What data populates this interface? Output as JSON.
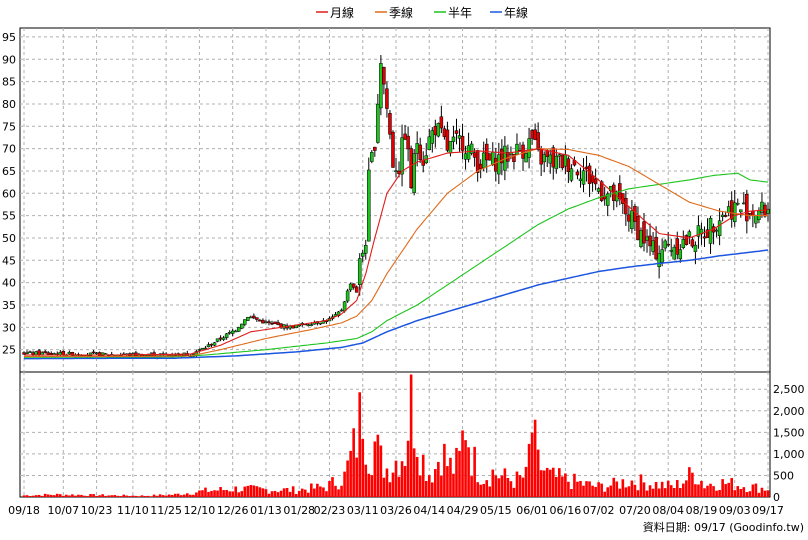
{
  "chart_data": {
    "type": "candlestick",
    "legend": [
      {
        "label": "月線",
        "color": "#e01b1b"
      },
      {
        "label": "季線",
        "color": "#e06a1b"
      },
      {
        "label": "半年",
        "color": "#1bc41b"
      },
      {
        "label": "年線",
        "color": "#1b55e0"
      }
    ],
    "legend_placement": "top-center",
    "grid": true,
    "price_axis": {
      "min": 20,
      "max": 97,
      "ticks": [
        25,
        30,
        35,
        40,
        45,
        50,
        55,
        60,
        65,
        70,
        75,
        80,
        85,
        90,
        95
      ]
    },
    "volume_axis": {
      "min": 0,
      "max": 2900,
      "ticks": [
        0,
        500,
        1000,
        1500,
        2000,
        2500
      ],
      "tick_labels": [
        "0",
        "500",
        "1,000",
        "1,500",
        "2,000",
        "2,500"
      ]
    },
    "x_axis": {
      "labels": [
        "09/18",
        "10/07",
        "10/23",
        "11/10",
        "11/25",
        "12/10",
        "12/26",
        "01/13",
        "01/28",
        "02/23",
        "03/11",
        "03/26",
        "04/14",
        "04/29",
        "05/15",
        "06/01",
        "06/16",
        "07/02",
        "07/20",
        "08/04",
        "08/19",
        "09/03",
        "09/17"
      ],
      "label_index": [
        0,
        13,
        24,
        36,
        47,
        58,
        69,
        80,
        91,
        101,
        112,
        123,
        134,
        145,
        156,
        168,
        179,
        190,
        202,
        213,
        224,
        235,
        246
      ]
    },
    "series_keypoints": {
      "close": [
        [
          0,
          24.2
        ],
        [
          20,
          24.0
        ],
        [
          40,
          23.8
        ],
        [
          55,
          24.0
        ],
        [
          60,
          25.5
        ],
        [
          65,
          27.5
        ],
        [
          70,
          29.5
        ],
        [
          74,
          32.5
        ],
        [
          80,
          31.0
        ],
        [
          88,
          30.0
        ],
        [
          95,
          31.0
        ],
        [
          100,
          31.5
        ],
        [
          103,
          32.5
        ],
        [
          105,
          34.0
        ],
        [
          108,
          40.0
        ],
        [
          110,
          38.0
        ],
        [
          111,
          44.0
        ],
        [
          113,
          50.0
        ],
        [
          114,
          63.0
        ],
        [
          116,
          72.0
        ],
        [
          118,
          90.0
        ],
        [
          120,
          79.0
        ],
        [
          122,
          67.0
        ],
        [
          124,
          66.0
        ],
        [
          126,
          74.0
        ],
        [
          128,
          62.0
        ],
        [
          130,
          72.0
        ],
        [
          132,
          68.0
        ],
        [
          134,
          72.0
        ],
        [
          136,
          75.0
        ],
        [
          140,
          70.0
        ],
        [
          145,
          72.0
        ],
        [
          150,
          67.0
        ],
        [
          155,
          67.0
        ],
        [
          158,
          68.0
        ],
        [
          165,
          70.0
        ],
        [
          168,
          72.0
        ],
        [
          170,
          68.0
        ],
        [
          175,
          67.0
        ],
        [
          180,
          67.0
        ],
        [
          185,
          65.0
        ],
        [
          190,
          61.0
        ],
        [
          195,
          59.0
        ],
        [
          200,
          55.0
        ],
        [
          205,
          50.0
        ],
        [
          208,
          47.0
        ],
        [
          212,
          48.0
        ],
        [
          218,
          49.0
        ],
        [
          222,
          50.0
        ],
        [
          226,
          52.0
        ],
        [
          230,
          55.0
        ],
        [
          235,
          57.0
        ],
        [
          240,
          56.0
        ],
        [
          244,
          56.0
        ],
        [
          246,
          56.5
        ]
      ],
      "volume": [
        [
          0,
          40
        ],
        [
          10,
          60
        ],
        [
          20,
          50
        ],
        [
          30,
          40
        ],
        [
          40,
          30
        ],
        [
          50,
          60
        ],
        [
          60,
          150
        ],
        [
          70,
          200
        ],
        [
          80,
          180
        ],
        [
          90,
          170
        ],
        [
          100,
          250
        ],
        [
          106,
          500
        ],
        [
          110,
          1400
        ],
        [
          112,
          2300
        ],
        [
          114,
          1100
        ],
        [
          116,
          1300
        ],
        [
          118,
          900
        ],
        [
          120,
          700
        ],
        [
          122,
          800
        ],
        [
          124,
          1000
        ],
        [
          126,
          1100
        ],
        [
          128,
          2500
        ],
        [
          130,
          1600
        ],
        [
          132,
          900
        ],
        [
          134,
          600
        ],
        [
          136,
          700
        ],
        [
          138,
          1200
        ],
        [
          140,
          800
        ],
        [
          142,
          700
        ],
        [
          144,
          900
        ],
        [
          146,
          1900
        ],
        [
          148,
          1000
        ],
        [
          150,
          700
        ],
        [
          152,
          500
        ],
        [
          155,
          600
        ],
        [
          158,
          500
        ],
        [
          162,
          400
        ],
        [
          166,
          500
        ],
        [
          168,
          1650
        ],
        [
          170,
          800
        ],
        [
          174,
          500
        ],
        [
          180,
          400
        ],
        [
          186,
          300
        ],
        [
          190,
          250
        ],
        [
          195,
          300
        ],
        [
          200,
          400
        ],
        [
          205,
          350
        ],
        [
          210,
          300
        ],
        [
          215,
          250
        ],
        [
          220,
          500
        ],
        [
          222,
          600
        ],
        [
          225,
          300
        ],
        [
          230,
          350
        ],
        [
          236,
          300
        ],
        [
          240,
          250
        ],
        [
          246,
          200
        ]
      ],
      "ma_month": [
        [
          0,
          23.8
        ],
        [
          30,
          23.8
        ],
        [
          55,
          24.0
        ],
        [
          65,
          26.0
        ],
        [
          75,
          29.0
        ],
        [
          90,
          30.5
        ],
        [
          100,
          31.5
        ],
        [
          105,
          33.0
        ],
        [
          110,
          36.0
        ],
        [
          113,
          42.0
        ],
        [
          116,
          50.0
        ],
        [
          120,
          60.0
        ],
        [
          125,
          65.0
        ],
        [
          130,
          67.0
        ],
        [
          140,
          69.0
        ],
        [
          150,
          69.5
        ],
        [
          160,
          69.0
        ],
        [
          170,
          70.0
        ],
        [
          180,
          68.5
        ],
        [
          190,
          63.0
        ],
        [
          200,
          57.0
        ],
        [
          210,
          51.0
        ],
        [
          220,
          50.0
        ],
        [
          228,
          52.0
        ],
        [
          235,
          55.0
        ],
        [
          240,
          56.0
        ],
        [
          246,
          56.3
        ]
      ],
      "ma_quarter": [
        [
          0,
          23.5
        ],
        [
          40,
          23.5
        ],
        [
          55,
          23.6
        ],
        [
          65,
          25.0
        ],
        [
          80,
          27.5
        ],
        [
          95,
          29.5
        ],
        [
          105,
          31.0
        ],
        [
          110,
          32.5
        ],
        [
          115,
          36.0
        ],
        [
          120,
          42.0
        ],
        [
          130,
          52.0
        ],
        [
          140,
          60.0
        ],
        [
          150,
          65.0
        ],
        [
          160,
          68.0
        ],
        [
          170,
          70.0
        ],
        [
          180,
          69.8
        ],
        [
          190,
          68.5
        ],
        [
          200,
          66.0
        ],
        [
          210,
          62.0
        ],
        [
          220,
          58.0
        ],
        [
          230,
          56.0
        ],
        [
          240,
          55.0
        ],
        [
          246,
          55.0
        ]
      ],
      "ma_half": [
        [
          0,
          23.3
        ],
        [
          50,
          23.4
        ],
        [
          60,
          23.8
        ],
        [
          80,
          25.0
        ],
        [
          100,
          26.5
        ],
        [
          110,
          27.5
        ],
        [
          115,
          29.0
        ],
        [
          120,
          31.5
        ],
        [
          130,
          35.0
        ],
        [
          140,
          39.5
        ],
        [
          150,
          44.0
        ],
        [
          160,
          48.5
        ],
        [
          170,
          53.0
        ],
        [
          180,
          56.5
        ],
        [
          190,
          59.0
        ],
        [
          200,
          61.0
        ],
        [
          210,
          62.0
        ],
        [
          220,
          63.0
        ],
        [
          228,
          64.0
        ],
        [
          236,
          64.5
        ],
        [
          240,
          63.0
        ],
        [
          246,
          62.5
        ]
      ],
      "ma_year": [
        [
          0,
          23.0
        ],
        [
          50,
          23.1
        ],
        [
          70,
          23.6
        ],
        [
          90,
          24.5
        ],
        [
          105,
          25.5
        ],
        [
          112,
          26.5
        ],
        [
          120,
          29.0
        ],
        [
          130,
          31.5
        ],
        [
          140,
          33.5
        ],
        [
          150,
          35.5
        ],
        [
          160,
          37.5
        ],
        [
          170,
          39.5
        ],
        [
          180,
          41.0
        ],
        [
          190,
          42.5
        ],
        [
          200,
          43.5
        ],
        [
          210,
          44.3
        ],
        [
          220,
          45.0
        ],
        [
          230,
          46.0
        ],
        [
          240,
          46.8
        ],
        [
          246,
          47.3
        ]
      ]
    }
  },
  "source_label": "資料日期: 09/17   (Goodinfo.tw)",
  "colors": {
    "up": "#1bc41b",
    "down": "#e00000",
    "volume": "#ff0000",
    "grid": "#b0b0b0",
    "frame": "#000000"
  }
}
